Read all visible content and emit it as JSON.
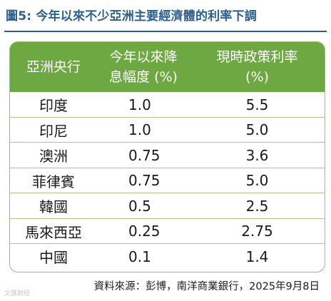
{
  "title": "圖5: 今年以來不少亞洲主要經濟體的利率下調",
  "table": {
    "headers": {
      "col1": "亞洲央行",
      "col2_line1": "今年以來降",
      "col2_line2": "息幅度 (%)",
      "col3_line1": "現時政策利率",
      "col3_line2": "(%)"
    },
    "rows": [
      {
        "bank": "印度",
        "cut": "1.0",
        "rate": "5.5"
      },
      {
        "bank": "印尼",
        "cut": "1.0",
        "rate": "5.0"
      },
      {
        "bank": "澳洲",
        "cut": "0.75",
        "rate": "3.6"
      },
      {
        "bank": "菲律賓",
        "cut": "0.75",
        "rate": "5.0"
      },
      {
        "bank": "韓國",
        "cut": "0.5",
        "rate": "2.5"
      },
      {
        "bank": "馬來西亞",
        "cut": "0.25",
        "rate": "2.75"
      },
      {
        "bank": "中國",
        "cut": "0.1",
        "rate": "1.4"
      }
    ]
  },
  "source": "資料來源：彭博，南洋商業銀行，2025年9月8日",
  "watermark": "文匯財經",
  "colors": {
    "title": "#2b5f8e",
    "header_bg": "#6ea843",
    "grid": "#a9c98c"
  }
}
